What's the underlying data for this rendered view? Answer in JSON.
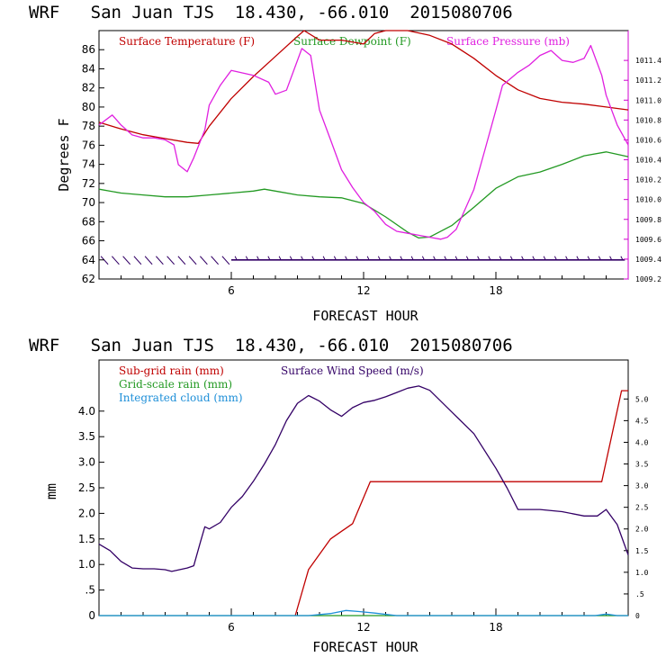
{
  "colors": {
    "temperature": "#c00000",
    "dewpoint": "#229922",
    "pressure": "#e020e0",
    "subgrid_rain": "#c00000",
    "gridscale_rain": "#229922",
    "cloud": "#1e8fd8",
    "wind_speed": "#330066",
    "pressure_axis": "#d000d0",
    "wind_barbs": "#330066"
  },
  "chart_data": [
    {
      "type": "line",
      "title": "WRF   San Juan TJS  18.430, -66.010  2015080706",
      "xlabel": "FORECAST HOUR",
      "ylabel": "Degrees F",
      "xlim": [
        0,
        24
      ],
      "ylim": [
        62,
        88
      ],
      "x_ticks": [
        "6",
        "12",
        "18"
      ],
      "y_ticks": [
        "62",
        "64",
        "66",
        "68",
        "70",
        "72",
        "74",
        "76",
        "78",
        "80",
        "82",
        "84",
        "86"
      ],
      "y2lim": [
        1009.2,
        1011.7
      ],
      "y2_ticks": [
        "1009.2",
        "1009.4",
        "1009.6",
        "1009.8",
        "1010.0",
        "1010.2",
        "1010.4",
        "1010.6",
        "1010.8",
        "1011.0",
        "1011.2",
        "1011.4"
      ],
      "grid": false,
      "legend_position": "top",
      "wind_barbs_level": 64,
      "series": [
        {
          "name": "Surface Temperature (F)",
          "axis": "left",
          "x": [
            0,
            1,
            2,
            3,
            4,
            4.5,
            5,
            6,
            7,
            8,
            9,
            9.3,
            10,
            11,
            12,
            12.5,
            13,
            14,
            15,
            16,
            17,
            18,
            19,
            20,
            21,
            22,
            23,
            24
          ],
          "y": [
            78.4,
            77.7,
            77.1,
            76.7,
            76.3,
            76.2,
            78.0,
            80.9,
            83.2,
            85.3,
            87.4,
            88.0,
            87.0,
            87.0,
            86.6,
            87.7,
            88.0,
            88.0,
            87.5,
            86.6,
            85.1,
            83.3,
            81.8,
            80.9,
            80.5,
            80.3,
            80.0,
            79.7
          ]
        },
        {
          "name": "Surface Dewpoint (F)",
          "axis": "left",
          "x": [
            0,
            1,
            2,
            3,
            4,
            5,
            6,
            7,
            7.5,
            8,
            9,
            10,
            11,
            12,
            13,
            14,
            14.5,
            15,
            16,
            17,
            18,
            19,
            20,
            21,
            22,
            23,
            24
          ],
          "y": [
            71.4,
            71.0,
            70.8,
            70.6,
            70.6,
            70.8,
            71.0,
            71.2,
            71.4,
            71.2,
            70.8,
            70.6,
            70.5,
            69.9,
            68.5,
            66.9,
            66.3,
            66.4,
            67.6,
            69.5,
            71.5,
            72.7,
            73.2,
            74.0,
            74.9,
            75.3,
            74.8
          ]
        },
        {
          "name": "Surface Pressure (mb)",
          "axis": "right",
          "x": [
            0,
            0.6,
            1,
            1.5,
            2,
            2.5,
            3,
            3.4,
            3.6,
            4,
            4.3,
            4.8,
            5,
            5.5,
            6,
            7,
            7.7,
            8,
            8.5,
            9.2,
            9.6,
            10,
            10.5,
            11,
            11.5,
            12,
            12.5,
            13,
            13.5,
            14,
            14.5,
            15,
            15.5,
            15.8,
            16.2,
            17,
            17.5,
            18,
            18.3,
            19,
            19.5,
            20,
            20.5,
            21,
            21.5,
            22,
            22.3,
            22.8,
            23,
            23.5,
            24
          ],
          "y": [
            1010.75,
            1010.85,
            1010.75,
            1010.65,
            1010.62,
            1010.62,
            1010.6,
            1010.55,
            1010.35,
            1010.28,
            1010.42,
            1010.7,
            1010.95,
            1011.15,
            1011.3,
            1011.25,
            1011.18,
            1011.06,
            1011.1,
            1011.52,
            1011.45,
            1010.9,
            1010.6,
            1010.3,
            1010.12,
            1009.97,
            1009.88,
            1009.75,
            1009.68,
            1009.66,
            1009.64,
            1009.62,
            1009.6,
            1009.62,
            1009.7,
            1010.1,
            1010.5,
            1010.9,
            1011.15,
            1011.28,
            1011.35,
            1011.45,
            1011.5,
            1011.4,
            1011.38,
            1011.42,
            1011.55,
            1011.25,
            1011.05,
            1010.75,
            1010.55
          ]
        }
      ]
    },
    {
      "type": "line",
      "title": "WRF   San Juan TJS  18.430, -66.010  2015080706",
      "xlabel": "FORECAST HOUR",
      "ylabel": "mm",
      "xlim": [
        0,
        24
      ],
      "ylim": [
        0,
        5
      ],
      "x_ticks": [
        "6",
        "12",
        "18"
      ],
      "y_ticks": [
        "0",
        ".5",
        "1.0",
        "1.5",
        "2.0",
        "2.5",
        "3.0",
        "3.5",
        "4.0"
      ],
      "y2lim": [
        0,
        5.9
      ],
      "y2_ticks": [
        "0",
        ".5",
        "1.0",
        "1.5",
        "2.0",
        "2.5",
        "3.0",
        "3.5",
        "4.0",
        "4.5",
        "5.0"
      ],
      "grid": false,
      "legend_position": "top",
      "series": [
        {
          "name": "Sub-grid rain (mm)",
          "axis": "left",
          "x": [
            8.9,
            9.5,
            10.5,
            11.5,
            12.3,
            22.8,
            23.7,
            24
          ],
          "y": [
            0,
            0.9,
            1.5,
            1.8,
            2.62,
            2.62,
            4.4,
            4.4
          ]
        },
        {
          "name": "Grid-scale rain (mm)",
          "axis": "left",
          "x": [
            0,
            24
          ],
          "y": [
            0,
            0
          ]
        },
        {
          "name": "Integrated cloud (mm)",
          "axis": "left",
          "x": [
            0,
            9.5,
            10.5,
            11.2,
            11.8,
            12.5,
            13.5,
            22.5,
            23,
            23.5,
            24
          ],
          "y": [
            0,
            0,
            0.04,
            0.1,
            0.08,
            0.05,
            0,
            0,
            0.03,
            0,
            0
          ]
        },
        {
          "name": "Surface Wind Speed (m/s)",
          "axis": "right",
          "x": [
            0,
            0.5,
            1,
            1.5,
            2,
            2.5,
            3,
            3.3,
            4,
            4.3,
            4.6,
            4.8,
            5,
            5.5,
            6,
            6.5,
            7,
            7.5,
            8,
            8.5,
            9,
            9.5,
            10,
            10.5,
            11,
            11.5,
            12,
            12.5,
            13,
            13.5,
            14,
            14.5,
            15,
            16,
            17,
            18,
            18.5,
            19,
            20,
            21,
            22,
            22.6,
            23,
            23.5,
            24
          ],
          "y": [
            1.65,
            1.5,
            1.25,
            1.1,
            1.08,
            1.08,
            1.06,
            1.02,
            1.1,
            1.15,
            1.7,
            2.05,
            2.0,
            2.15,
            2.5,
            2.75,
            3.1,
            3.5,
            3.95,
            4.5,
            4.9,
            5.08,
            4.95,
            4.75,
            4.6,
            4.8,
            4.92,
            4.97,
            5.05,
            5.15,
            5.25,
            5.3,
            5.2,
            4.7,
            4.2,
            3.4,
            2.95,
            2.45,
            2.45,
            2.4,
            2.3,
            2.3,
            2.45,
            2.1,
            1.4
          ]
        }
      ]
    }
  ]
}
